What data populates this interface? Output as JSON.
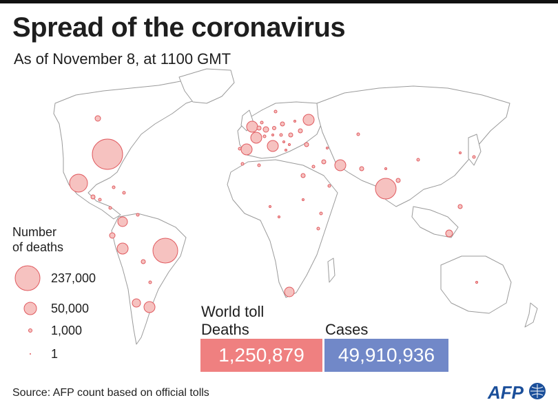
{
  "title": "Spread of the coronavirus",
  "subtitle": "As of November 8, at 1100 GMT",
  "legend": {
    "title": "Number\nof deaths",
    "items": [
      {
        "label": "237,000",
        "value": 237000
      },
      {
        "label": "50,000",
        "value": 50000
      },
      {
        "label": "1,000",
        "value": 1000
      },
      {
        "label": "1",
        "value": 1
      }
    ]
  },
  "world_toll": {
    "heading": "World toll",
    "deaths_label": "Deaths",
    "cases_label": "Cases",
    "deaths_value": "1,250,879",
    "cases_value": "49,910,936"
  },
  "source": "Source: AFP count based on official tolls",
  "logo": "AFP",
  "colors": {
    "bubble_fill": "#f6c2c0",
    "bubble_stroke": "#e0595e",
    "deaths_box": "#ef8080",
    "cases_box": "#7188c8",
    "land": "#ffffff",
    "border": "#9a9a9a"
  }
}
